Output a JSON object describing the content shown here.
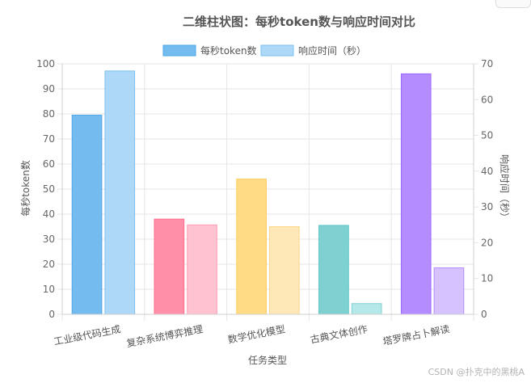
{
  "chart_data": {
    "type": "bar",
    "title": "二维柱状图：每秒token数与响应时间对比",
    "xlabel": "任务类型",
    "ylabel_left": "每秒token数",
    "ylabel_right": "响应时间（秒）",
    "categories": [
      "工业级代码生成",
      "复杂系统博弈推理",
      "数学优化模型",
      "古典文体创作",
      "塔罗牌占卜解读"
    ],
    "y_left_range": [
      0,
      100
    ],
    "y_left_ticks": [
      0,
      10,
      20,
      30,
      40,
      50,
      60,
      70,
      80,
      90,
      100
    ],
    "y_right_range": [
      0,
      70
    ],
    "y_right_ticks": [
      0,
      10,
      20,
      30,
      40,
      50,
      60,
      70
    ],
    "grid": true,
    "legend_position": "top",
    "series": [
      {
        "name": "每秒token数",
        "axis": "left",
        "values": [
          79.5,
          38,
          54,
          35.5,
          96
        ],
        "colors": [
          "#74bcf0",
          "#ff8fa8",
          "#ffdb85",
          "#7fd1d1",
          "#b48cff"
        ],
        "border_colors": [
          "#4da7e8",
          "#ff6f8e",
          "#ffcc5c",
          "#5cc4c4",
          "#9a66ff"
        ],
        "legend_color": "#74bcf0",
        "legend_border": "#4da7e8"
      },
      {
        "name": "响应时间（秒）",
        "axis": "right",
        "values": [
          68,
          25,
          24.5,
          3,
          13
        ],
        "colors": [
          "#add8f7",
          "#ffc2d0",
          "#ffe8b8",
          "#b5e8e8",
          "#d5c2ff"
        ],
        "border_colors": [
          "#7cbff0",
          "#ff9fb6",
          "#ffd68a",
          "#7fd1d1",
          "#b48cff"
        ],
        "legend_color": "#add8f7",
        "legend_border": "#7cbff0"
      }
    ]
  },
  "watermark": "CSDN @扑克中的黑桃A"
}
